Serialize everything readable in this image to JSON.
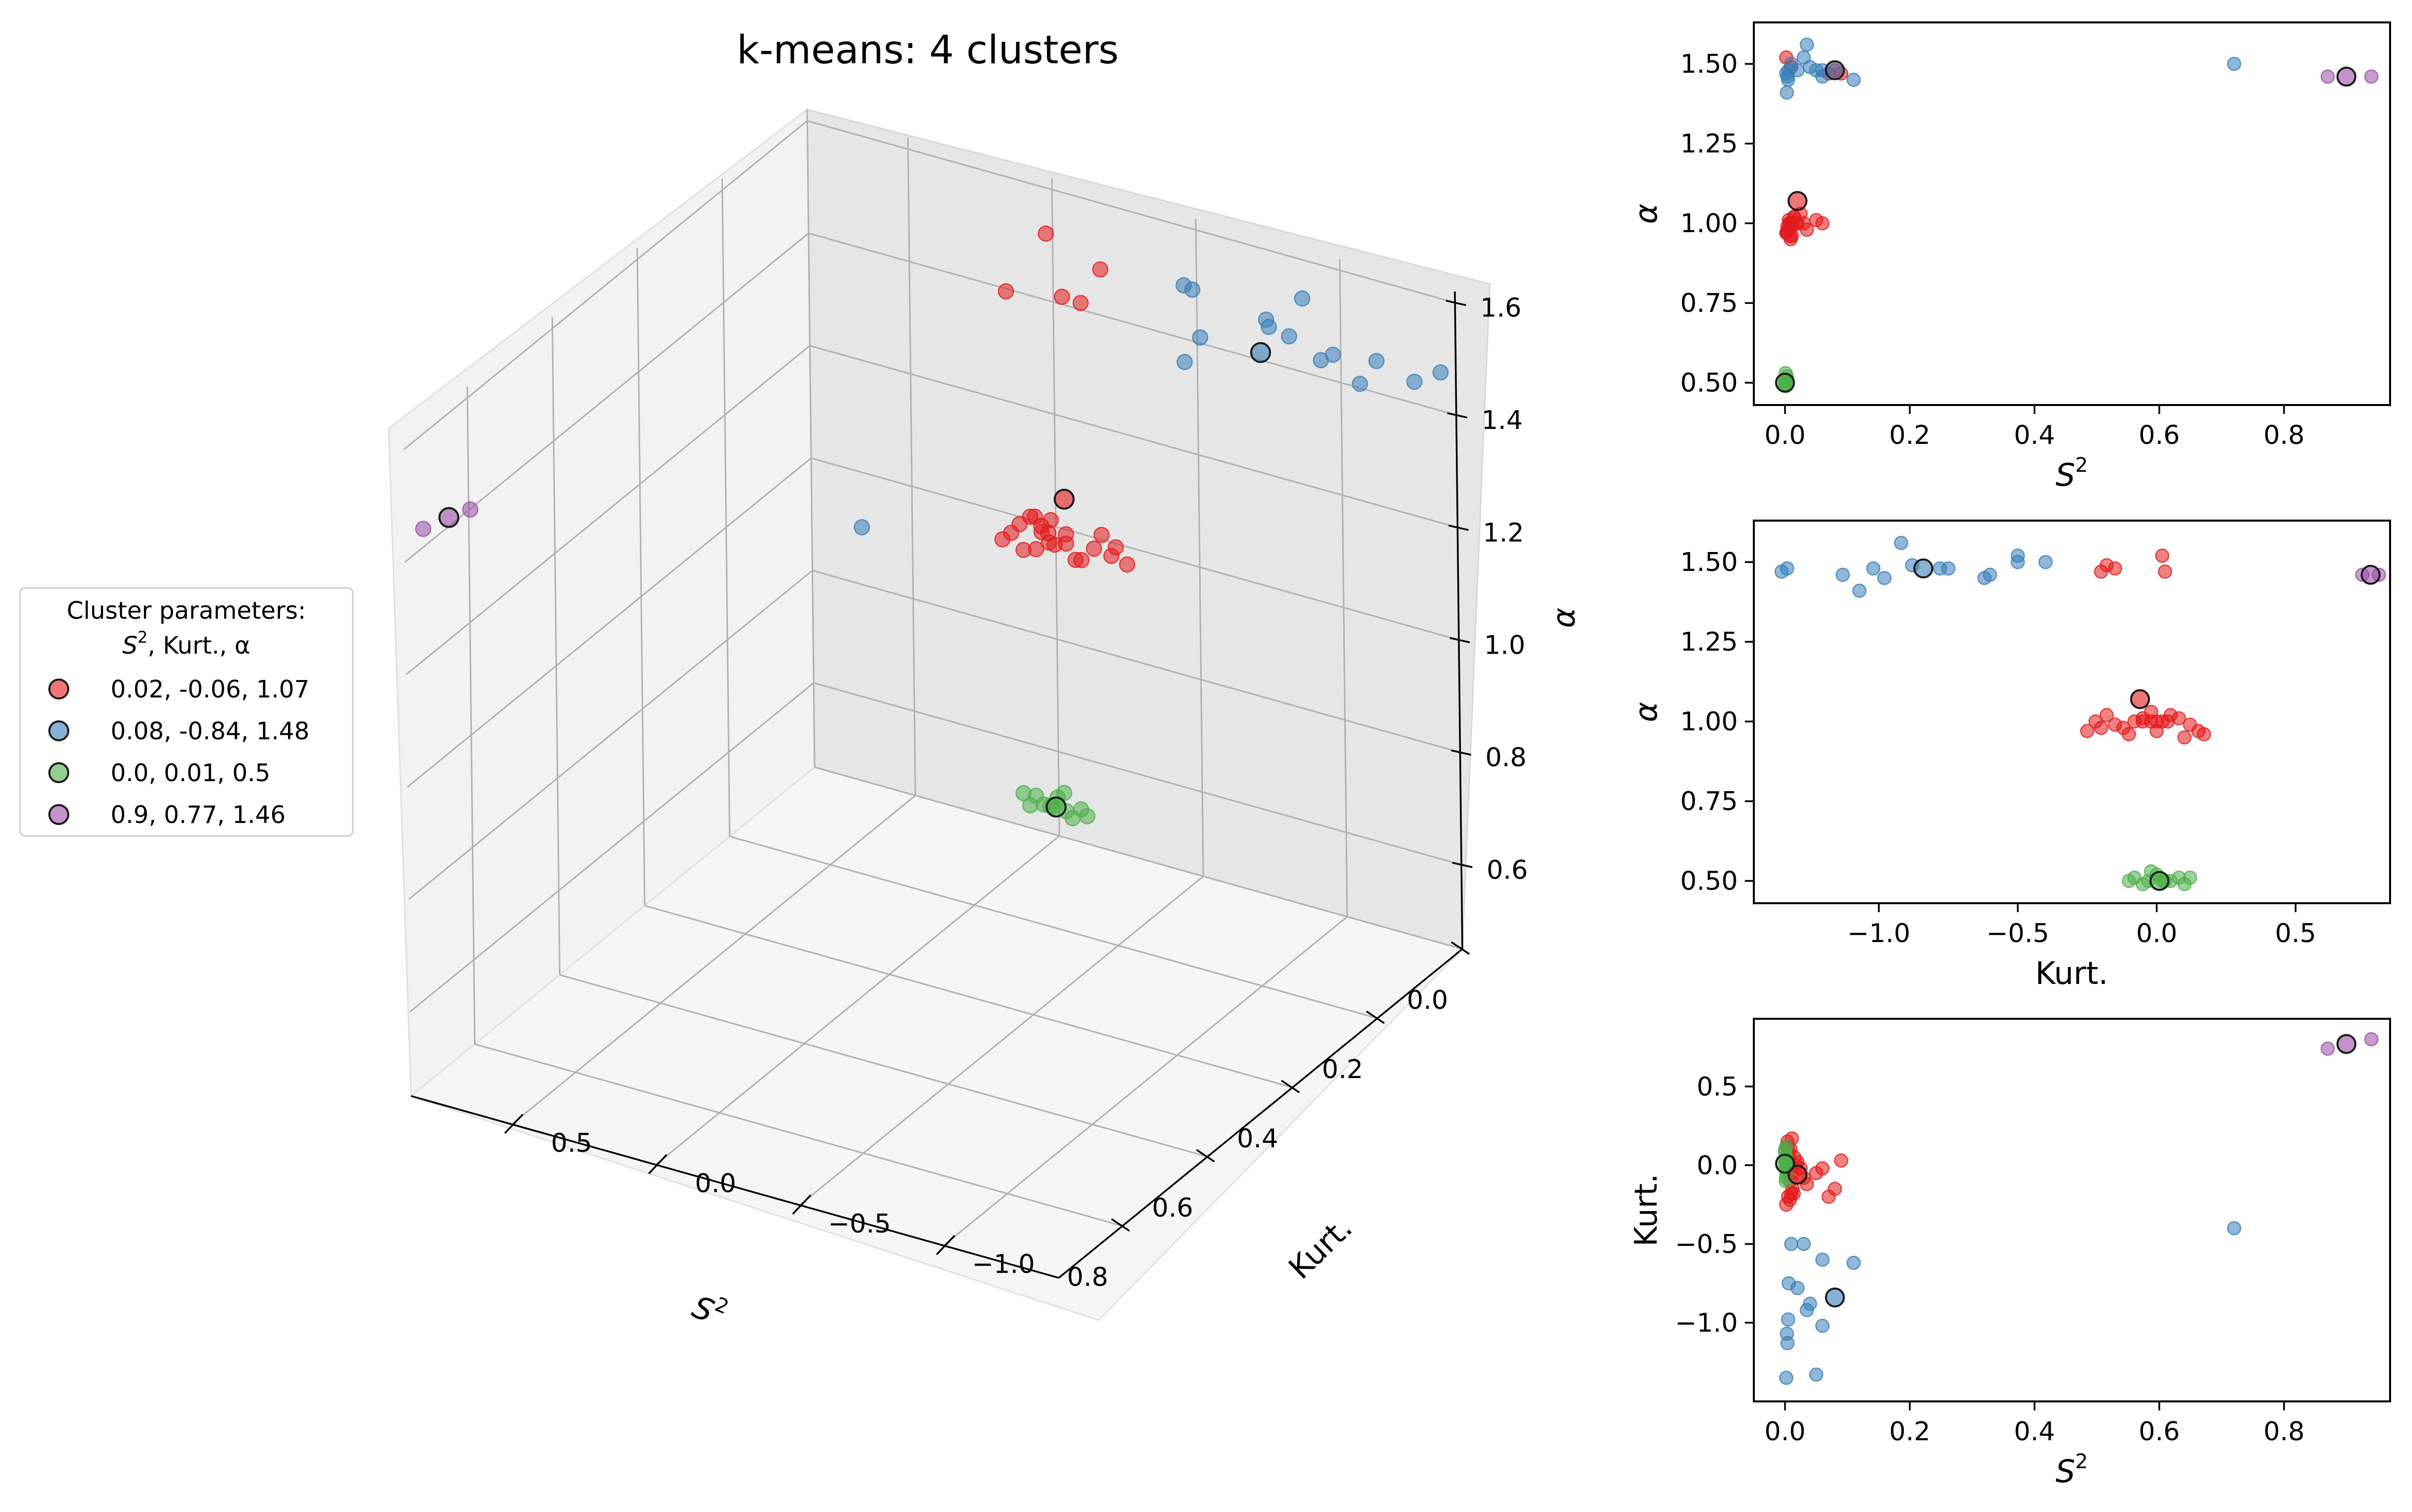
{
  "colors": {
    "cluster_red": "#e41a1c",
    "cluster_blue": "#377eb8",
    "cluster_green": "#4daf4a",
    "cluster_purple": "#984ea3",
    "pane_left": "#f2f2f2",
    "pane_right": "#e6e6e6",
    "pane_floor": "#f5f5f5",
    "grid": "#b0b0b0"
  },
  "legend": {
    "title_line1": "Cluster parameters:",
    "title_line2_var": "S",
    "title_line2_sup": "2",
    "title_line2_rest": ", Kurt., α",
    "entries": [
      {
        "label": "0.02, -0.06, 1.07",
        "color": "#e41a1c"
      },
      {
        "label": "0.08, -0.84, 1.48",
        "color": "#377eb8"
      },
      {
        "label": "0.0, 0.01, 0.5",
        "color": "#4daf4a"
      },
      {
        "label": "0.9, 0.77, 1.46",
        "color": "#984ea3"
      }
    ]
  },
  "chart_data": [
    {
      "type": "scatter",
      "projection": "3d",
      "title": "k-means: 4 clusters",
      "axes": {
        "x": {
          "label_var": "S",
          "label_sup": "2",
          "range": [
            0,
            0.95
          ],
          "ticks": [
            "0.0",
            "0.2",
            "0.4",
            "0.6",
            "0.8"
          ],
          "tick_values": [
            0,
            0.2,
            0.4,
            0.6,
            0.8
          ]
        },
        "y": {
          "label": "Kurt.",
          "range": [
            -1.4,
            0.85
          ],
          "ticks": [
            "−1.0",
            "−0.5",
            "0.0",
            "0.5"
          ],
          "tick_values": [
            -1.0,
            -0.5,
            0.0,
            0.5
          ]
        },
        "z": {
          "label": "α",
          "range": [
            0.45,
            1.62
          ],
          "ticks": [
            "0.6",
            "0.8",
            "1.0",
            "1.2",
            "1.4",
            "1.6"
          ],
          "tick_values": [
            0.6,
            0.8,
            1.0,
            1.2,
            1.4,
            1.6
          ]
        }
      },
      "grid": true
    },
    {
      "type": "scatter",
      "panel": "top-right",
      "xlabel_var": "S",
      "xlabel_sup": "2",
      "ylabel": "α",
      "xlim": [
        -0.05,
        0.97
      ],
      "ylim": [
        0.43,
        1.63
      ],
      "xticks": [
        "0.0",
        "0.2",
        "0.4",
        "0.6",
        "0.8"
      ],
      "xtick_values": [
        0,
        0.2,
        0.4,
        0.6,
        0.8
      ],
      "yticks": [
        "0.50",
        "0.75",
        "1.00",
        "1.25",
        "1.50"
      ],
      "ytick_values": [
        0.5,
        0.75,
        1.0,
        1.25,
        1.5
      ],
      "x_field": "s2",
      "y_field": "alpha"
    },
    {
      "type": "scatter",
      "panel": "middle-right",
      "xlabel": "Kurt.",
      "ylabel": "α",
      "xlim": [
        -1.45,
        0.84
      ],
      "ylim": [
        0.43,
        1.63
      ],
      "xticks": [
        "−1.0",
        "−0.5",
        "0.0",
        "0.5"
      ],
      "xtick_values": [
        -1.0,
        -0.5,
        0.0,
        0.5
      ],
      "yticks": [
        "0.50",
        "0.75",
        "1.00",
        "1.25",
        "1.50"
      ],
      "ytick_values": [
        0.5,
        0.75,
        1.0,
        1.25,
        1.5
      ],
      "x_field": "kurt",
      "y_field": "alpha"
    },
    {
      "type": "scatter",
      "panel": "bottom-right",
      "xlabel_var": "S",
      "xlabel_sup": "2",
      "ylabel": "Kurt.",
      "xlim": [
        -0.05,
        0.97
      ],
      "ylim": [
        -1.5,
        0.93
      ],
      "xticks": [
        "0.0",
        "0.2",
        "0.4",
        "0.6",
        "0.8"
      ],
      "xtick_values": [
        0,
        0.2,
        0.4,
        0.6,
        0.8
      ],
      "yticks": [
        "−1.0",
        "−0.5",
        "0.0",
        "0.5"
      ],
      "ytick_values": [
        -1.0,
        -0.5,
        0.0,
        0.5
      ],
      "x_field": "s2",
      "y_field": "kurt"
    }
  ],
  "clusters": [
    {
      "color": "#e41a1c",
      "centroid": [
        0.02,
        -0.06,
        1.07
      ],
      "points": [
        [
          0.005,
          -0.2,
          0.98
        ],
        [
          0.01,
          -0.05,
          1.0
        ],
        [
          0.003,
          0.0,
          0.97
        ],
        [
          0.015,
          0.05,
          1.02
        ],
        [
          0.008,
          -0.1,
          0.96
        ],
        [
          0.02,
          0.02,
          1.0
        ],
        [
          0.006,
          0.08,
          1.01
        ],
        [
          0.012,
          -0.15,
          0.99
        ],
        [
          0.004,
          0.15,
          0.97
        ],
        [
          0.025,
          -0.02,
          1.03
        ],
        [
          0.009,
          0.1,
          0.95
        ],
        [
          0.03,
          -0.08,
          1.0
        ],
        [
          0.002,
          -0.25,
          0.97
        ],
        [
          0.018,
          0.0,
          1.0
        ],
        [
          0.007,
          0.04,
          1.0
        ],
        [
          0.035,
          -0.12,
          0.98
        ],
        [
          0.05,
          -0.05,
          1.01
        ],
        [
          0.06,
          -0.02,
          1.0
        ],
        [
          0.011,
          0.17,
          0.96
        ],
        [
          0.014,
          -0.18,
          1.02
        ],
        [
          0.008,
          -0.22,
          1.0
        ],
        [
          0.004,
          0.12,
          0.99
        ],
        [
          0.002,
          0.02,
          1.52
        ],
        [
          0.07,
          -0.2,
          1.47
        ],
        [
          0.08,
          -0.15,
          1.48
        ],
        [
          0.09,
          0.03,
          1.47
        ],
        [
          0.01,
          -0.18,
          1.49
        ]
      ]
    },
    {
      "color": "#377eb8",
      "centroid": [
        0.08,
        -0.84,
        1.48
      ],
      "points": [
        [
          0.002,
          -1.35,
          1.47
        ],
        [
          0.004,
          -1.13,
          1.46
        ],
        [
          0.003,
          -1.07,
          1.41
        ],
        [
          0.006,
          -0.75,
          1.48
        ],
        [
          0.01,
          -0.5,
          1.5
        ],
        [
          0.03,
          -0.5,
          1.52
        ],
        [
          0.06,
          -0.6,
          1.46
        ],
        [
          0.11,
          -0.62,
          1.45
        ],
        [
          0.04,
          -0.88,
          1.49
        ],
        [
          0.02,
          -0.78,
          1.48
        ],
        [
          0.05,
          -1.33,
          1.48
        ],
        [
          0.035,
          -0.92,
          1.56
        ],
        [
          0.06,
          -1.02,
          1.48
        ],
        [
          0.005,
          -0.98,
          1.45
        ],
        [
          0.72,
          -0.4,
          1.5
        ]
      ]
    },
    {
      "color": "#4daf4a",
      "centroid": [
        0.0,
        0.01,
        0.5
      ],
      "points": [
        [
          0.001,
          0.02,
          0.5
        ],
        [
          0.002,
          -0.05,
          0.49
        ],
        [
          0.0,
          0.08,
          0.51
        ],
        [
          0.003,
          0.0,
          0.52
        ],
        [
          0.001,
          -0.1,
          0.5
        ],
        [
          0.002,
          0.05,
          0.5
        ],
        [
          0.001,
          -0.02,
          0.53
        ],
        [
          0.0,
          0.1,
          0.49
        ],
        [
          0.002,
          -0.08,
          0.51
        ],
        [
          0.001,
          0.03,
          0.5
        ],
        [
          0.003,
          -0.03,
          0.5
        ],
        [
          0.002,
          0.12,
          0.51
        ]
      ]
    },
    {
      "color": "#984ea3",
      "centroid": [
        0.9,
        0.77,
        1.46
      ],
      "points": [
        [
          0.87,
          0.74,
          1.46
        ],
        [
          0.94,
          0.8,
          1.46
        ]
      ]
    }
  ]
}
